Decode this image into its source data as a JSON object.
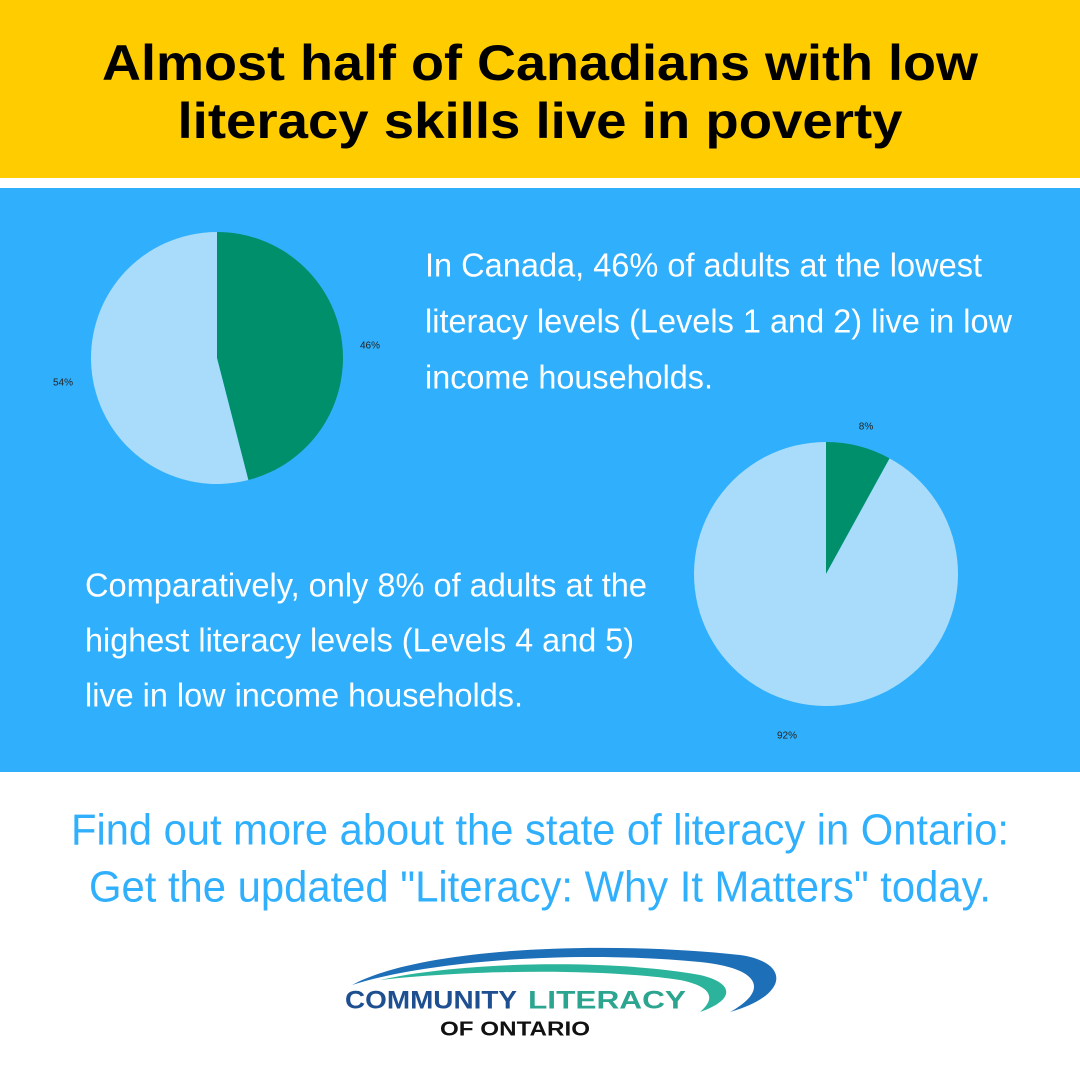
{
  "header": {
    "title": [
      "Almost half of Canadians with low",
      "literacy skills live in poverty"
    ]
  },
  "chart_data": [
    {
      "type": "pie",
      "values": [
        46,
        54
      ],
      "value_labels": [
        "46%",
        "54%"
      ],
      "colors": [
        "#008f6b",
        "#a8dcfa"
      ]
    },
    {
      "type": "pie",
      "values": [
        8,
        92
      ],
      "value_labels": [
        "8%",
        "92%"
      ],
      "colors": [
        "#008f6b",
        "#a8dcfa"
      ]
    }
  ],
  "text": {
    "low": [
      "In Canada, 46% of adults at the lowest",
      "literacy levels (Levels 1 and 2) live in low",
      "income households."
    ],
    "high": [
      "Comparatively, only 8% of adults at the",
      "highest literacy levels (Levels 4 and 5)",
      "live in low income households."
    ]
  },
  "footer": {
    "lines": [
      "Find out more about the state of literacy in Ontario:",
      "Get the updated \"Literacy: Why It Matters\" today."
    ]
  },
  "logo": {
    "word1": "COMMUNITY",
    "word2": "LITERACY",
    "line2": "OF ONTARIO"
  }
}
